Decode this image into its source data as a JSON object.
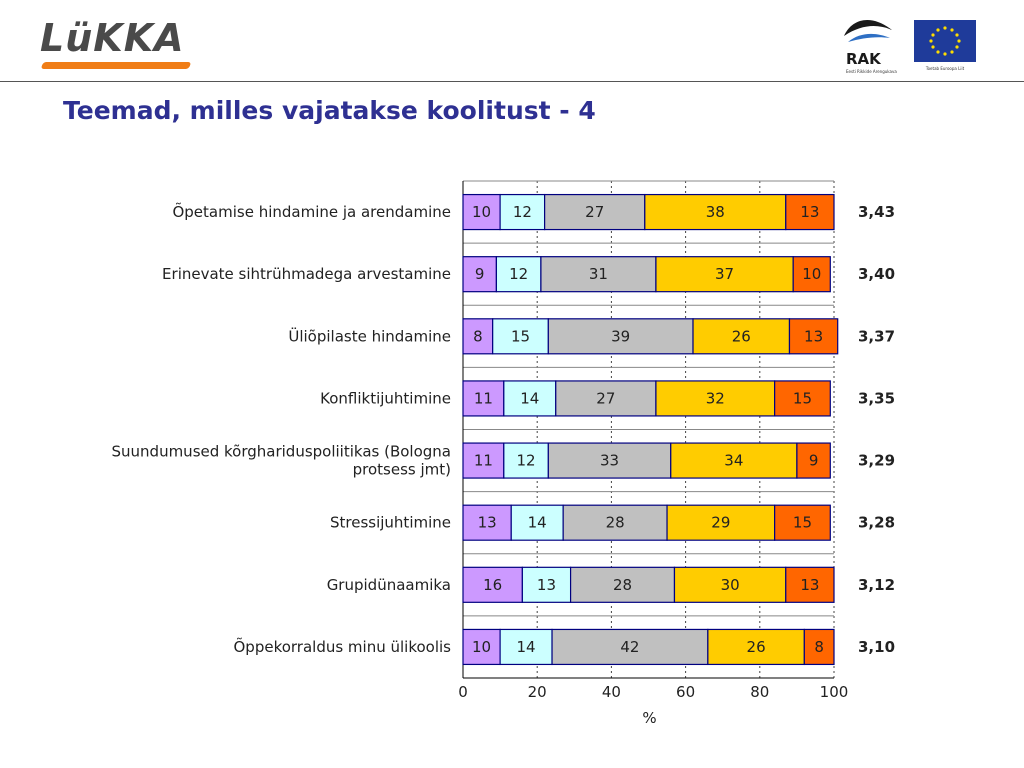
{
  "header": {
    "logo_text": "LüKKA",
    "rak_logo_text": "RAK",
    "rak_subtext": "Eesti Rikkide Arengukava",
    "eu_subtext": "Toetab Euroopa Liit"
  },
  "page_title": "Teemad, milles vajatakse koolitust - 4",
  "colors": {
    "seg1": "#cc99ff",
    "seg2": "#ccffff",
    "seg3": "#c0c0c0",
    "seg4": "#ffcc00",
    "seg5": "#ff6600",
    "border": "#000080",
    "accent_title": "#2e3092",
    "logo_orange": "#f07d16"
  },
  "chart_data": {
    "type": "bar",
    "orientation": "horizontal",
    "stacked": true,
    "categories": [
      [
        "Õpetamise hindamine ja arendamine"
      ],
      [
        "Erinevate sihtrühmadega arvestamine"
      ],
      [
        "Üliõpilaste hindamine"
      ],
      [
        "Konfliktijuhtimine"
      ],
      [
        "Suundumused kõrghariduspoliitikas (Bologna",
        "protsess jmt)"
      ],
      [
        "Stressijuhtimine"
      ],
      [
        "Grupidünaamika"
      ],
      [
        "Õppekorraldus minu ülikoolis"
      ]
    ],
    "series_values": [
      [
        10,
        12,
        27,
        38,
        13
      ],
      [
        9,
        12,
        31,
        37,
        10
      ],
      [
        8,
        15,
        39,
        26,
        13
      ],
      [
        11,
        14,
        27,
        32,
        15
      ],
      [
        11,
        12,
        33,
        34,
        9
      ],
      [
        13,
        14,
        28,
        29,
        15
      ],
      [
        16,
        13,
        28,
        30,
        13
      ],
      [
        10,
        14,
        42,
        26,
        8
      ]
    ],
    "scores": [
      "3,43",
      "3,40",
      "3,37",
      "3,35",
      "3,29",
      "3,28",
      "3,12",
      "3,10"
    ],
    "xlabel": "%",
    "xlim": [
      0,
      100
    ],
    "xticks": [
      0,
      20,
      40,
      60,
      80,
      100
    ],
    "grid": true,
    "legend": "none"
  }
}
